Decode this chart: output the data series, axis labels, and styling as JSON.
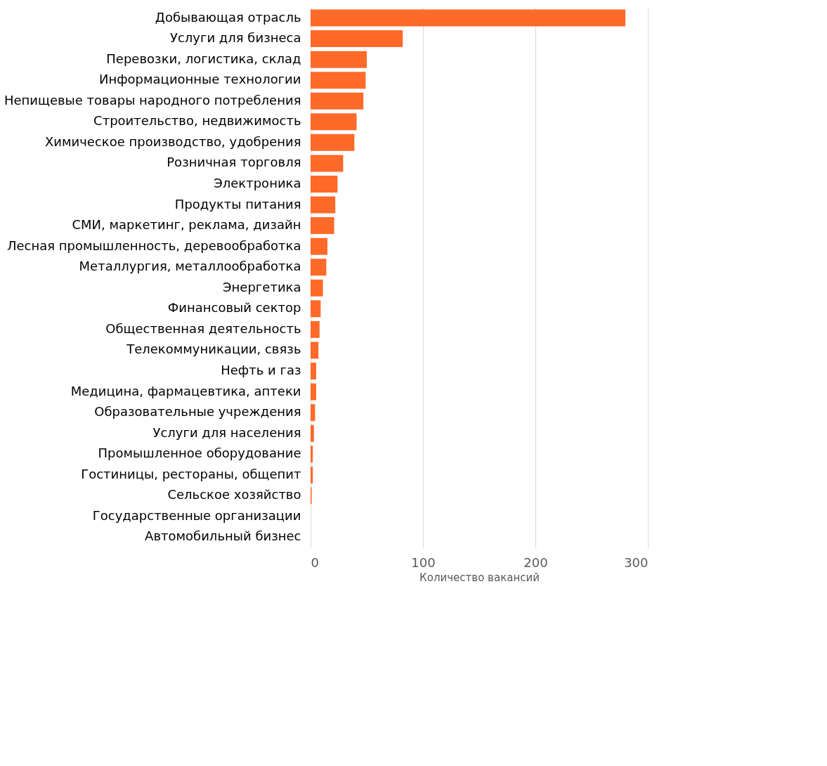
{
  "chart_data": {
    "type": "bar",
    "orientation": "horizontal",
    "xlabel": "Количество вакансий",
    "categories": [
      "Добывающая отрасль",
      "Услуги для бизнеса",
      "Перевозки, логистика, склад",
      "Информационные технологии",
      "Непищевые товары народного потребления",
      "Строительство, недвижимость",
      "Химическое производство, удобрения",
      "Розничная торговля",
      "Электроника",
      "Продукты питания",
      "СМИ, маркетинг, реклама, дизайн",
      "Лесная промышленность, деревообработка",
      "Металлургия, металлообработка",
      "Энергетика",
      "Финансовый сектор",
      "Общественная деятельность",
      "Телекоммуникации, связь",
      "Нефть и газ",
      "Медицина, фармацевтика, аптеки",
      "Образовательные учреждения",
      "Услуги для населения",
      "Промышленное оборудование",
      "Гостиницы, рестораны, общепит",
      "Сельское хозяйство",
      "Государственные организации",
      "Автомобильный бизнес"
    ],
    "values": [
      280,
      82,
      50,
      49,
      47,
      41,
      39,
      29,
      24,
      22,
      21,
      15,
      14,
      11,
      9,
      8,
      7,
      5,
      5,
      4,
      3,
      2,
      2,
      1,
      0,
      0
    ],
    "color": "#ff6a2a",
    "xlim": [
      0,
      300
    ],
    "xticks": [
      0,
      100,
      200,
      300
    ],
    "grid": "x"
  }
}
